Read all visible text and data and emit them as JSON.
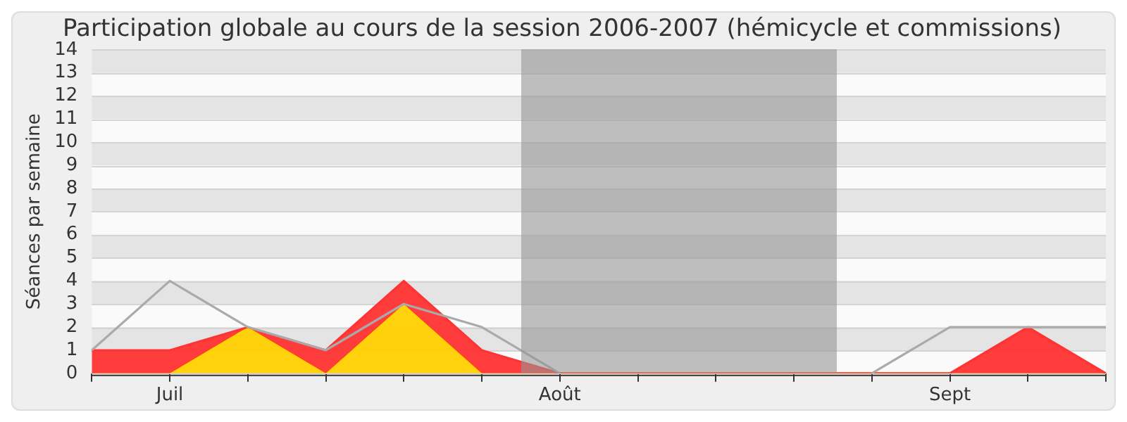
{
  "chart_data": {
    "type": "area",
    "title": "Participation globale au cours de la session 2006-2007 (hémicycle et commissions)",
    "ylabel": "Séances par semaine",
    "categories": [
      null,
      "Juil",
      null,
      null,
      null,
      null,
      "Août",
      null,
      null,
      null,
      null,
      "Sept",
      null,
      null
    ],
    "stacked": true,
    "series": [
      {
        "color": "#ffd000",
        "values": [
          0,
          0,
          2,
          0,
          3,
          0,
          0,
          0,
          0,
          0,
          0,
          0,
          0,
          0
        ]
      },
      {
        "color": "#ff3333",
        "values": [
          1,
          1,
          0,
          1,
          1,
          1,
          0,
          0,
          0,
          0,
          0,
          0,
          2,
          0
        ]
      },
      {
        "type": "line",
        "color": "#aaaaaa",
        "values": [
          1,
          4,
          2,
          1,
          3,
          2,
          0,
          null,
          null,
          null,
          0,
          2,
          2,
          2
        ]
      }
    ],
    "ylim": [
      0,
      14
    ],
    "yticks": [
      0,
      1,
      2,
      3,
      4,
      5,
      6,
      7,
      8,
      9,
      10,
      11,
      12,
      13,
      14
    ],
    "grid": "y",
    "legend": false,
    "marker": "none"
  }
}
